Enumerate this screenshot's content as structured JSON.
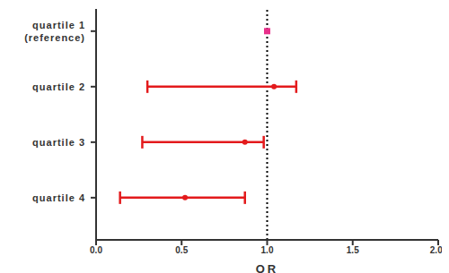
{
  "chart_data": {
    "type": "forest",
    "x_label": "OR",
    "categories": [
      "quartile 1 (reference)",
      "quartile 2",
      "quartile 3",
      "quartile 4"
    ],
    "values": [
      1,
      1.04,
      0.87,
      0.52
    ],
    "ci_low": [
      null,
      0.3,
      0.27,
      0.14
    ],
    "ci_high": [
      null,
      1.17,
      0.98,
      0.87
    ],
    "colors": [
      "#e8308a",
      "#e31a1c",
      "#e31a1c",
      "#e31a1c"
    ],
    "marker": "circle",
    "xlim": [
      0,
      2
    ],
    "xticks": [
      {
        "value": 0,
        "label": "0.0"
      },
      0.5,
      {
        "value": 1,
        "label": "1.0"
      },
      1.5,
      {
        "value": 2,
        "label": "2.0"
      }
    ],
    "reference_line": 1,
    "grid": false
  }
}
